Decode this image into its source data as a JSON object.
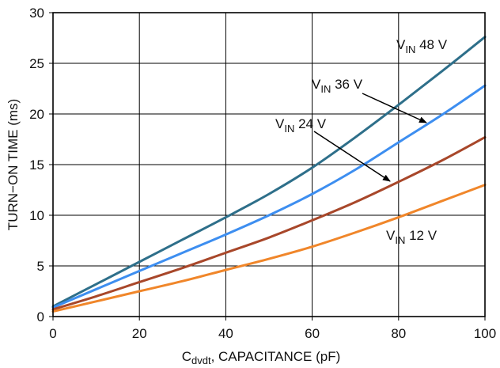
{
  "chart_data": {
    "type": "line",
    "xlabel": {
      "main": "C",
      "sub": "dvdt",
      "rest": ", CAPACITANCE (pF)"
    },
    "ylabel": "TURN−ON TIME (ms)",
    "xlim": [
      0,
      100
    ],
    "ylim": [
      0,
      30
    ],
    "xticks": [
      0,
      20,
      40,
      60,
      80,
      100
    ],
    "yticks": [
      0,
      5,
      10,
      15,
      20,
      25,
      30
    ],
    "grid": true,
    "series": [
      {
        "name": {
          "main": "V",
          "sub": "IN",
          "rest": " 48 V"
        },
        "color": "#2e6f8a",
        "x": [
          0,
          10,
          20,
          30,
          40,
          50,
          60,
          70,
          80,
          90,
          100
        ],
        "y": [
          1.0,
          3.2,
          5.4,
          7.6,
          9.8,
          12.1,
          14.7,
          17.7,
          20.9,
          24.2,
          27.6
        ]
      },
      {
        "name": {
          "main": "V",
          "sub": "IN",
          "rest": " 36 V"
        },
        "color": "#3d8ef0",
        "x": [
          0,
          10,
          20,
          30,
          40,
          50,
          60,
          70,
          80,
          90,
          100
        ],
        "y": [
          0.9,
          2.7,
          4.5,
          6.3,
          8.1,
          10.0,
          12.1,
          14.5,
          17.2,
          19.9,
          22.8
        ]
      },
      {
        "name": {
          "main": "V",
          "sub": "IN",
          "rest": " 24 V"
        },
        "color": "#a8472a",
        "x": [
          0,
          10,
          20,
          30,
          40,
          50,
          60,
          70,
          80,
          90,
          100
        ],
        "y": [
          0.7,
          2.0,
          3.4,
          4.8,
          6.3,
          7.8,
          9.5,
          11.3,
          13.3,
          15.4,
          17.7
        ]
      },
      {
        "name": {
          "main": "V",
          "sub": "IN",
          "rest": " 12 V"
        },
        "color": "#f0862a",
        "x": [
          0,
          10,
          20,
          30,
          40,
          50,
          60,
          70,
          80,
          90,
          100
        ],
        "y": [
          0.5,
          1.5,
          2.5,
          3.5,
          4.6,
          5.7,
          6.9,
          8.3,
          9.8,
          11.4,
          13.0
        ]
      }
    ]
  }
}
